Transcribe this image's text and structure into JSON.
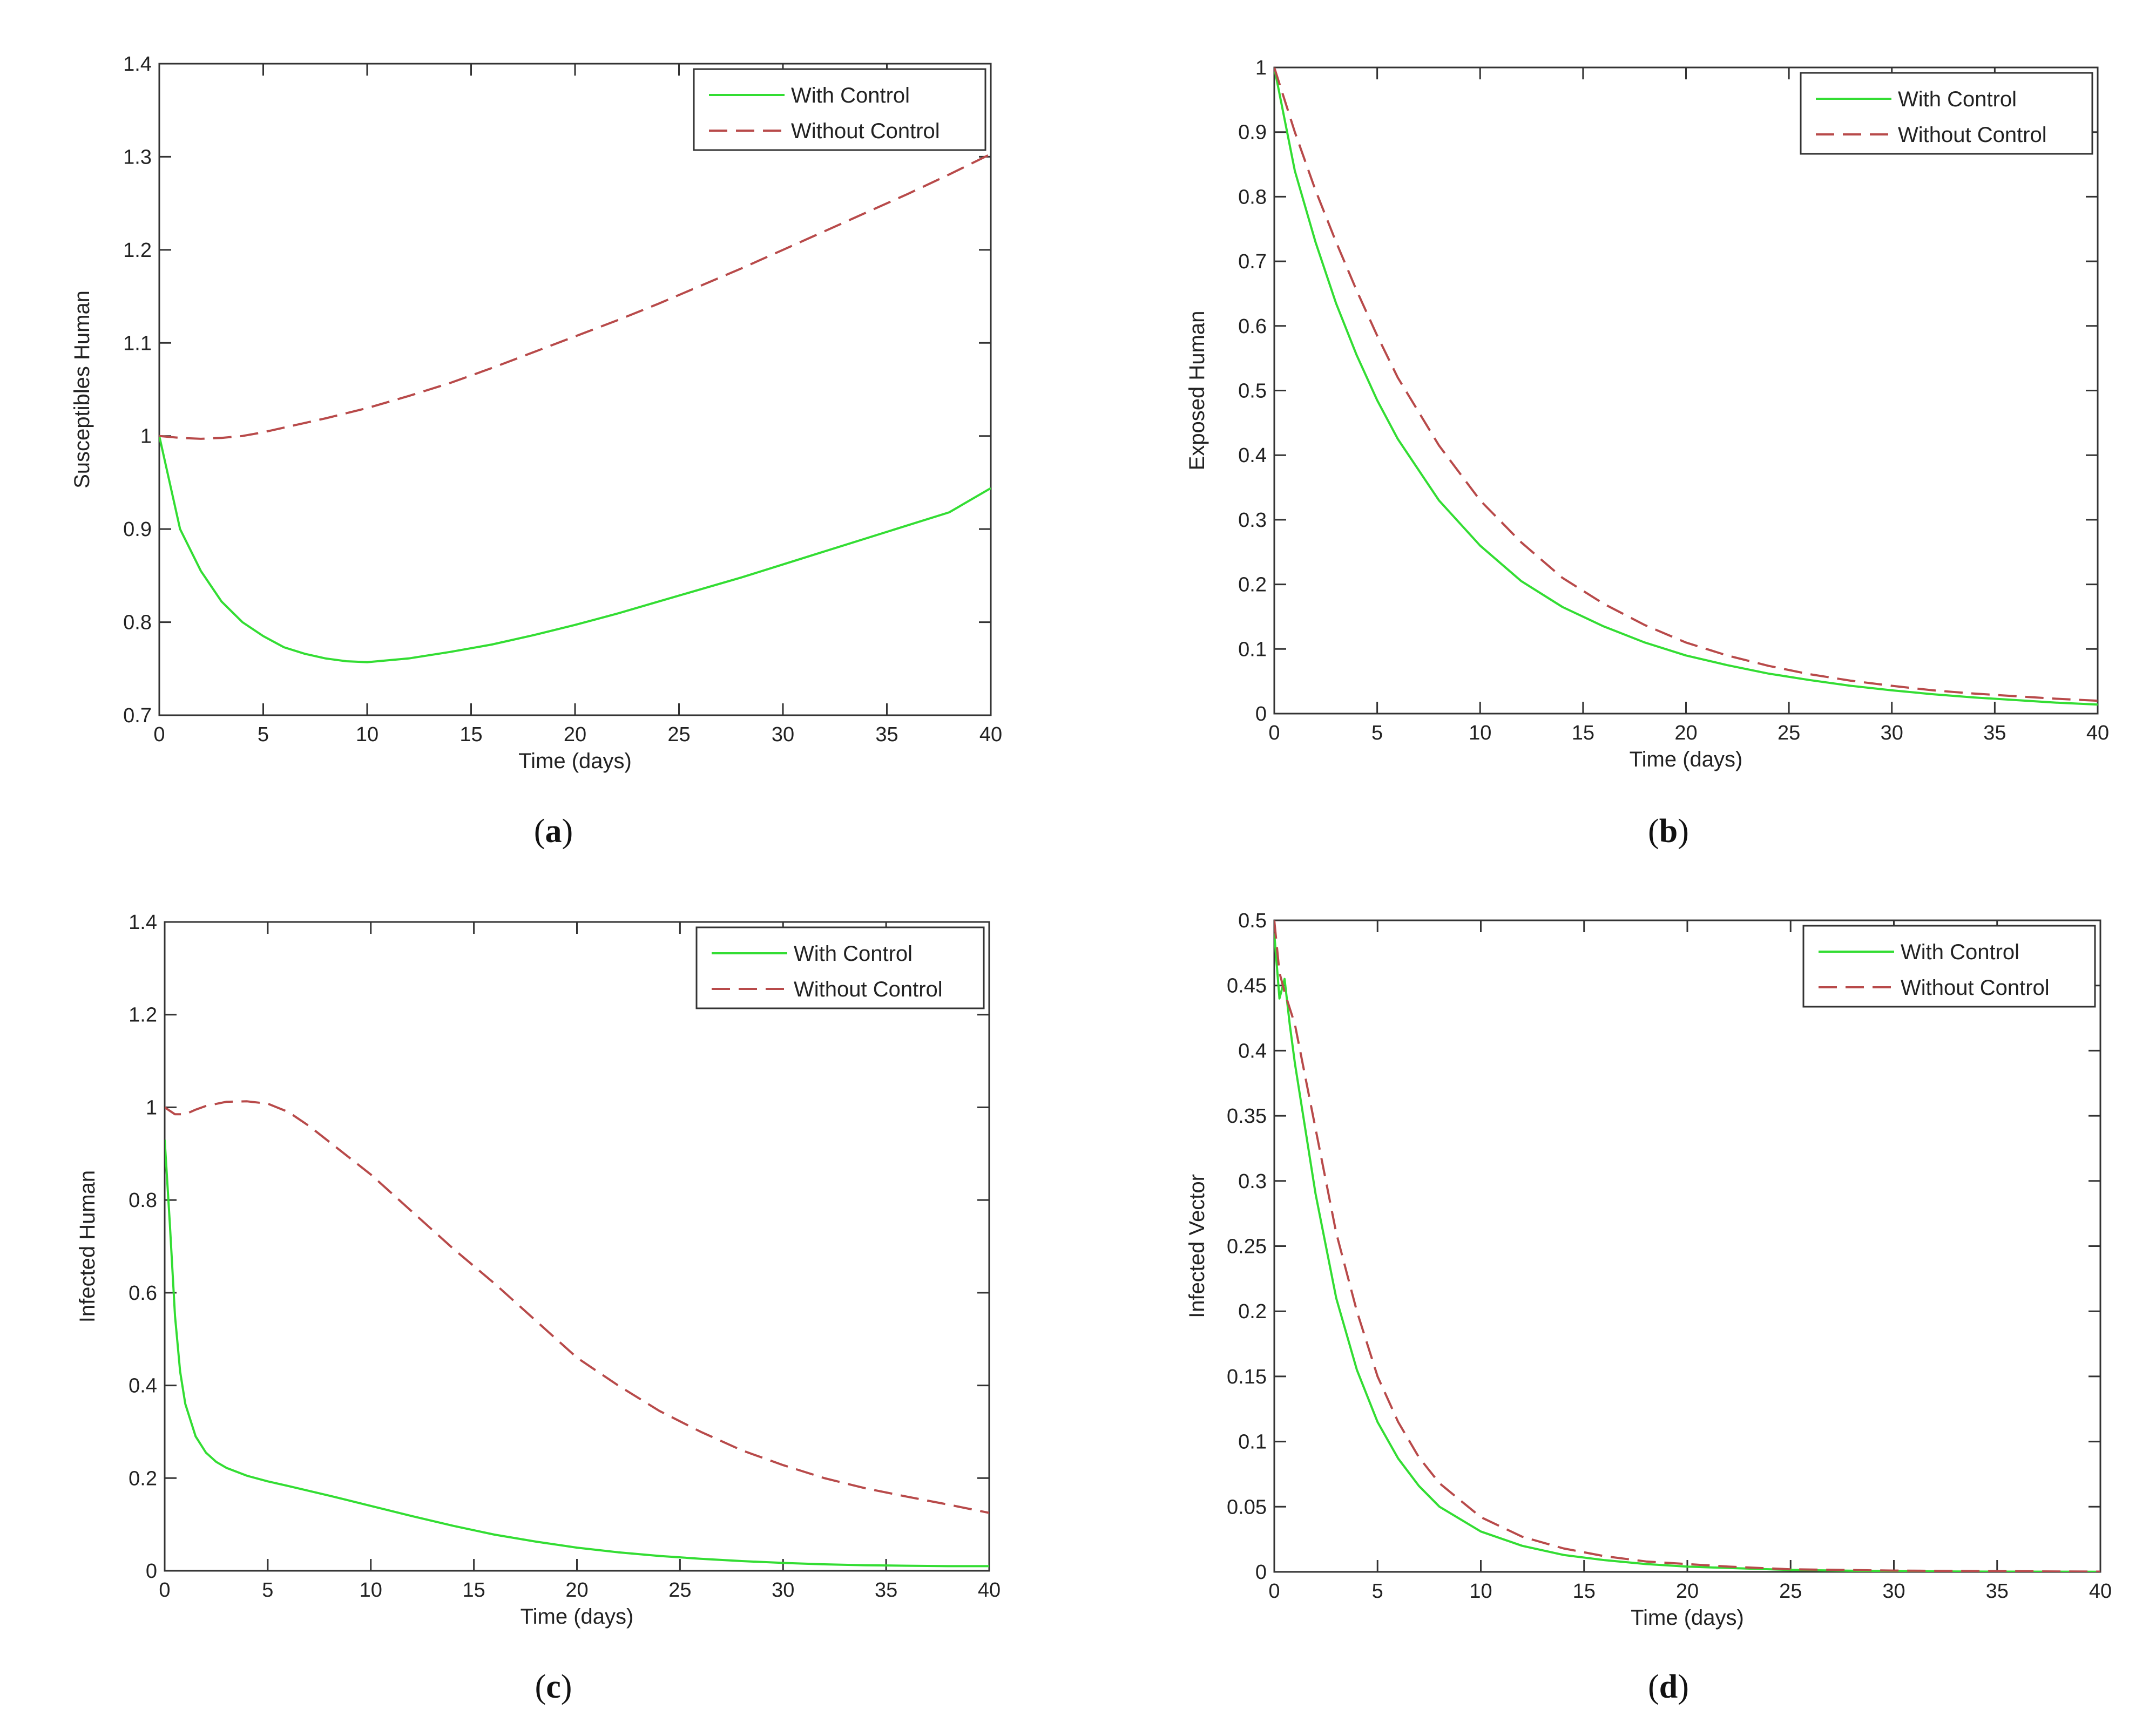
{
  "figure": {
    "colors": {
      "with_control": "#33dd33",
      "without_control": "#b84a4a",
      "axes": "#333333"
    }
  },
  "chart_data": [
    {
      "type": "line",
      "panel": "a",
      "caption": "(a)",
      "caption_letter": "a",
      "title": "",
      "xlabel": "Time (days)",
      "ylabel": "Susceptibles Human",
      "xlim": [
        0,
        40
      ],
      "ylim": [
        0.7,
        1.4
      ],
      "xticks": [
        0,
        5,
        10,
        15,
        20,
        25,
        30,
        35,
        40
      ],
      "yticks": [
        0.7,
        0.8,
        0.9,
        1,
        1.1,
        1.2,
        1.3,
        1.4
      ],
      "ytick_labels": [
        "0.7",
        "0.8",
        "0.9",
        "1",
        "1.1",
        "1.2",
        "1.3",
        "1.4"
      ],
      "legend_position": "top-right",
      "series": [
        {
          "name": "With Control",
          "style": "solid",
          "x": [
            0,
            1,
            2,
            3,
            4,
            5,
            6,
            7,
            8,
            9,
            10,
            12,
            14,
            16,
            18,
            20,
            22,
            24,
            26,
            28,
            30,
            32,
            34,
            36,
            38,
            40
          ],
          "values": [
            1.0,
            0.9,
            0.855,
            0.822,
            0.8,
            0.785,
            0.773,
            0.766,
            0.761,
            0.758,
            0.757,
            0.761,
            0.768,
            0.776,
            0.786,
            0.797,
            0.809,
            0.822,
            0.835,
            0.848,
            0.862,
            0.876,
            0.89,
            0.904,
            0.918,
            0.944
          ]
        },
        {
          "name": "Without Control",
          "style": "dashed",
          "x": [
            0,
            1,
            2,
            3,
            4,
            5,
            6,
            8,
            10,
            12,
            14,
            16,
            18,
            20,
            22,
            24,
            26,
            28,
            30,
            32,
            34,
            36,
            38,
            40
          ],
          "values": [
            1.0,
            0.998,
            0.997,
            0.998,
            1.0,
            1.004,
            1.009,
            1.019,
            1.03,
            1.043,
            1.057,
            1.073,
            1.09,
            1.107,
            1.124,
            1.142,
            1.161,
            1.18,
            1.2,
            1.22,
            1.24,
            1.26,
            1.281,
            1.303
          ]
        }
      ]
    },
    {
      "type": "line",
      "panel": "b",
      "caption": "(b)",
      "caption_letter": "b",
      "title": "",
      "xlabel": "Time (days)",
      "ylabel": "Exposed Human",
      "xlim": [
        0,
        40
      ],
      "ylim": [
        0,
        1
      ],
      "xticks": [
        0,
        5,
        10,
        15,
        20,
        25,
        30,
        35,
        40
      ],
      "yticks": [
        0,
        0.1,
        0.2,
        0.3,
        0.4,
        0.5,
        0.6,
        0.7,
        0.8,
        0.9,
        1
      ],
      "ytick_labels": [
        "0",
        "0.1",
        "0.2",
        "0.3",
        "0.4",
        "0.5",
        "0.6",
        "0.7",
        "0.8",
        "0.9",
        "1"
      ],
      "legend_position": "top-right",
      "series": [
        {
          "name": "With Control",
          "style": "solid",
          "x": [
            0,
            1,
            2,
            3,
            4,
            5,
            6,
            8,
            10,
            12,
            14,
            16,
            18,
            20,
            22,
            24,
            26,
            28,
            30,
            32,
            34,
            36,
            38,
            40
          ],
          "values": [
            1.0,
            0.84,
            0.73,
            0.635,
            0.555,
            0.485,
            0.425,
            0.33,
            0.26,
            0.205,
            0.165,
            0.135,
            0.11,
            0.09,
            0.075,
            0.062,
            0.052,
            0.043,
            0.036,
            0.03,
            0.025,
            0.021,
            0.017,
            0.014
          ]
        },
        {
          "name": "Without Control",
          "style": "dashed",
          "x": [
            0,
            1,
            2,
            3,
            4,
            5,
            6,
            8,
            10,
            12,
            14,
            16,
            18,
            20,
            22,
            24,
            26,
            28,
            30,
            32,
            34,
            36,
            38,
            40
          ],
          "values": [
            1.0,
            0.9,
            0.81,
            0.73,
            0.655,
            0.585,
            0.52,
            0.415,
            0.33,
            0.265,
            0.21,
            0.17,
            0.137,
            0.11,
            0.09,
            0.074,
            0.061,
            0.051,
            0.043,
            0.036,
            0.031,
            0.027,
            0.023,
            0.02
          ]
        }
      ]
    },
    {
      "type": "line",
      "panel": "c",
      "caption": "(c)",
      "caption_letter": "c",
      "title": "",
      "xlabel": "Time (days)",
      "ylabel": "Infected Human",
      "xlim": [
        0,
        40
      ],
      "ylim": [
        0,
        1.4
      ],
      "xticks": [
        0,
        5,
        10,
        15,
        20,
        25,
        30,
        35,
        40
      ],
      "yticks": [
        0,
        0.2,
        0.4,
        0.6,
        0.8,
        1,
        1.2,
        1.4
      ],
      "ytick_labels": [
        "0",
        "0.2",
        "0.4",
        "0.6",
        "0.8",
        "1",
        "1.2",
        "1.4"
      ],
      "legend_position": "top-right",
      "series": [
        {
          "name": "With Control",
          "style": "solid",
          "x": [
            0,
            0.25,
            0.5,
            0.75,
            1,
            1.5,
            2,
            2.5,
            3,
            4,
            5,
            6,
            8,
            10,
            12,
            14,
            16,
            18,
            20,
            22,
            24,
            26,
            28,
            30,
            32,
            34,
            36,
            38,
            40
          ],
          "values": [
            0.93,
            0.75,
            0.55,
            0.43,
            0.36,
            0.29,
            0.255,
            0.235,
            0.222,
            0.205,
            0.193,
            0.183,
            0.162,
            0.14,
            0.118,
            0.097,
            0.078,
            0.063,
            0.05,
            0.04,
            0.032,
            0.026,
            0.021,
            0.017,
            0.014,
            0.012,
            0.011,
            0.01,
            0.01
          ]
        },
        {
          "name": "Without Control",
          "style": "dashed",
          "x": [
            0,
            0.5,
            1,
            1.5,
            2,
            3,
            4,
            5,
            6,
            7,
            8,
            10,
            12,
            14,
            16,
            18,
            20,
            22,
            24,
            26,
            28,
            30,
            32,
            34,
            36,
            38,
            40
          ],
          "values": [
            1.0,
            0.985,
            0.985,
            0.995,
            1.003,
            1.012,
            1.013,
            1.008,
            0.99,
            0.96,
            0.925,
            0.855,
            0.775,
            0.695,
            0.62,
            0.54,
            0.46,
            0.4,
            0.345,
            0.3,
            0.26,
            0.228,
            0.2,
            0.178,
            0.16,
            0.143,
            0.125
          ]
        }
      ]
    },
    {
      "type": "line",
      "panel": "d",
      "caption": "(d)",
      "caption_letter": "d",
      "title": "",
      "xlabel": "Time (days)",
      "ylabel": "Infected Vector",
      "xlim": [
        0,
        40
      ],
      "ylim": [
        0,
        0.5
      ],
      "xticks": [
        0,
        5,
        10,
        15,
        20,
        25,
        30,
        35,
        40
      ],
      "yticks": [
        0,
        0.05,
        0.1,
        0.15,
        0.2,
        0.25,
        0.3,
        0.35,
        0.4,
        0.45,
        0.5
      ],
      "ytick_labels": [
        "0",
        "0.05",
        "0.1",
        "0.15",
        "0.2",
        "0.25",
        "0.3",
        "0.35",
        "0.4",
        "0.45",
        "0.5"
      ],
      "legend_position": "top-right",
      "series": [
        {
          "name": "With Control",
          "style": "solid",
          "x": [
            0,
            0.25,
            0.5,
            0.75,
            1,
            1.5,
            2,
            3,
            4,
            5,
            6,
            7,
            8,
            10,
            12,
            14,
            16,
            18,
            20,
            22,
            25,
            30,
            35,
            40
          ],
          "values": [
            0.49,
            0.44,
            0.455,
            0.42,
            0.39,
            0.34,
            0.29,
            0.21,
            0.155,
            0.115,
            0.087,
            0.066,
            0.05,
            0.031,
            0.02,
            0.013,
            0.009,
            0.006,
            0.004,
            0.003,
            0.0015,
            0.0005,
            0.0002,
            0.0001
          ]
        },
        {
          "name": "Without Control",
          "style": "dashed",
          "x": [
            0,
            0.25,
            0.5,
            1,
            1.5,
            2,
            3,
            4,
            5,
            6,
            7,
            8,
            10,
            12,
            14,
            16,
            18,
            20,
            22,
            25,
            30,
            35,
            40
          ],
          "values": [
            0.5,
            0.46,
            0.445,
            0.42,
            0.38,
            0.34,
            0.26,
            0.2,
            0.15,
            0.115,
            0.088,
            0.068,
            0.042,
            0.027,
            0.018,
            0.012,
            0.008,
            0.006,
            0.004,
            0.002,
            0.001,
            0.0005,
            0.0002
          ]
        }
      ]
    }
  ]
}
